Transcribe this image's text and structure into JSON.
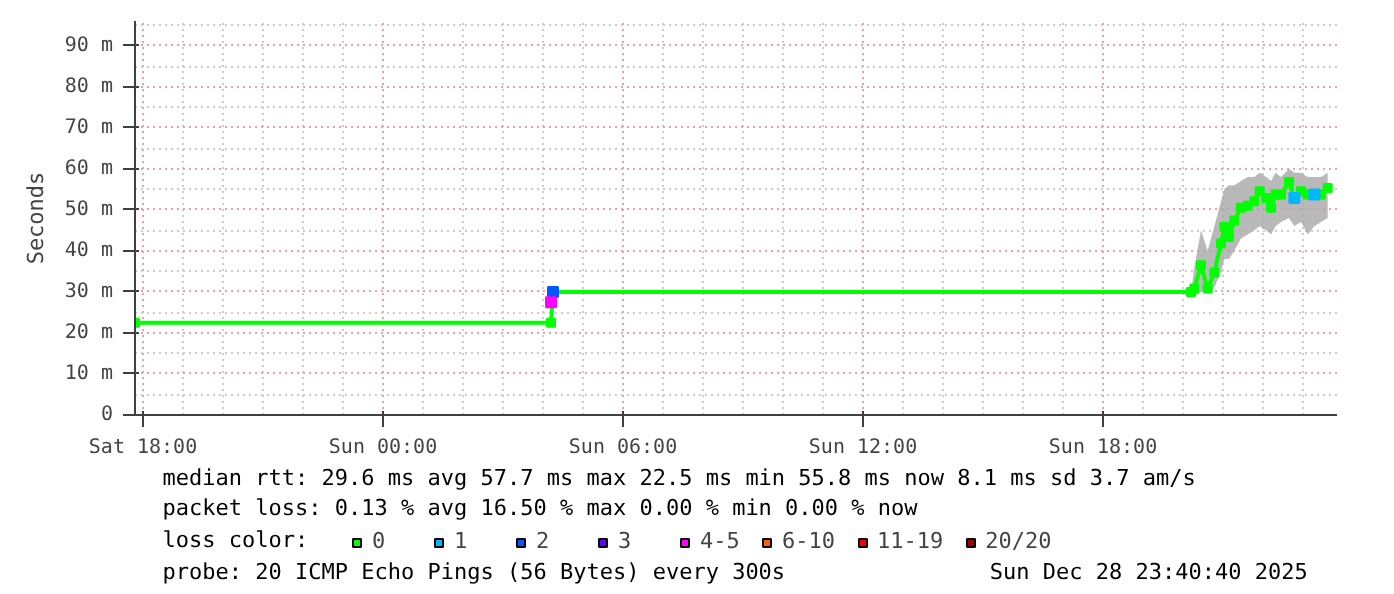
{
  "chart_data": {
    "type": "line",
    "ylabel": "Seconds",
    "x": [
      "2025-12-27T17:48",
      "2025-12-28T04:12",
      "2025-12-28T04:15",
      "2025-12-28T20:12",
      "2025-12-28T20:17",
      "2025-12-28T20:27",
      "2025-12-28T20:37",
      "2025-12-28T20:47",
      "2025-12-28T20:57",
      "2025-12-28T21:02",
      "2025-12-28T21:09",
      "2025-12-28T21:17",
      "2025-12-28T21:27",
      "2025-12-28T21:37",
      "2025-12-28T21:47",
      "2025-12-28T21:55",
      "2025-12-28T22:05",
      "2025-12-28T22:12",
      "2025-12-28T22:19",
      "2025-12-28T22:27",
      "2025-12-28T22:39",
      "2025-12-28T22:47",
      "2025-12-28T22:57",
      "2025-12-28T23:07",
      "2025-12-28T23:17",
      "2025-12-28T23:27",
      "2025-12-28T23:37"
    ],
    "series": [
      {
        "name": "0",
        "color": "#00ff00",
        "values": [
          22.5,
          22.5,
          30,
          30,
          30.8,
          36.5,
          30.8,
          34.7,
          41.8,
          45.8,
          43.4,
          47.4,
          50.5,
          51,
          52.1,
          54.5,
          52.9,
          50.5,
          53.7,
          53.7,
          56.8,
          52.9,
          54.5,
          53.7,
          53.7,
          53.7,
          55.3
        ],
        "lower": [
          22.5,
          22.5,
          30,
          30,
          29,
          30,
          30,
          31,
          35,
          38,
          38,
          40,
          43,
          44,
          45,
          46,
          45,
          44,
          46,
          47,
          48,
          46,
          47,
          44,
          46,
          47,
          48
        ],
        "upper": [
          22.5,
          22.5,
          30,
          30,
          36,
          45,
          40,
          46,
          52,
          55,
          56,
          56,
          57,
          58,
          58,
          59,
          58,
          57,
          59,
          58,
          60,
          59,
          59,
          58,
          58,
          58,
          59
        ]
      },
      {
        "name": "1",
        "type": "scatter",
        "color": "#00b8ff",
        "values": [
          null,
          null,
          null,
          null,
          null,
          null,
          null,
          null,
          null,
          null,
          null,
          null,
          null,
          null,
          null,
          null,
          null,
          null,
          null,
          null,
          null,
          52.9,
          null,
          null,
          53.7,
          null,
          null
        ]
      },
      {
        "name": "2",
        "type": "scatter",
        "color": "#0059ff",
        "values": [
          null,
          null,
          30,
          null,
          null,
          null,
          null,
          null,
          null,
          null,
          null,
          null,
          null,
          null,
          null,
          null,
          null,
          null,
          null,
          null,
          null,
          null,
          null,
          null,
          null,
          null,
          null
        ]
      },
      {
        "name": "3",
        "type": "scatter",
        "color": "#5e00ff",
        "values": [
          null,
          null,
          null,
          null,
          null,
          null,
          null,
          null,
          null,
          null,
          null,
          null,
          null,
          null,
          null,
          null,
          null,
          null,
          null,
          null,
          null,
          null,
          null,
          null,
          null,
          null,
          null
        ]
      },
      {
        "name": "4-5",
        "type": "scatter",
        "color": "#ff00ff",
        "values": [
          null,
          27.5,
          null,
          null,
          null,
          null,
          null,
          null,
          null,
          null,
          null,
          null,
          null,
          null,
          null,
          null,
          null,
          null,
          null,
          null,
          null,
          null,
          null,
          null,
          null,
          null,
          null
        ]
      },
      {
        "name": "6-10",
        "type": "scatter",
        "color": "#ff5e00",
        "values": [
          null,
          null,
          null,
          null,
          null,
          null,
          null,
          null,
          null,
          null,
          null,
          null,
          null,
          null,
          null,
          null,
          null,
          null,
          null,
          null,
          null,
          null,
          null,
          null,
          null,
          null,
          null
        ]
      },
      {
        "name": "11-19",
        "type": "scatter",
        "color": "#ff0000",
        "values": [
          null,
          null,
          null,
          null,
          null,
          null,
          null,
          null,
          null,
          null,
          null,
          null,
          null,
          null,
          null,
          null,
          null,
          null,
          null,
          null,
          null,
          null,
          null,
          null,
          null,
          null,
          null
        ]
      },
      {
        "name": "20/20",
        "type": "scatter",
        "color": "#a10000",
        "values": [
          null,
          null,
          null,
          null,
          null,
          null,
          null,
          null,
          null,
          null,
          null,
          null,
          null,
          null,
          null,
          null,
          null,
          null,
          null,
          null,
          null,
          null,
          null,
          null,
          null,
          null,
          null
        ]
      }
    ],
    "xlim": [
      "2025-12-27T17:48",
      "2025-12-28T23:51"
    ],
    "xticks": [
      {
        "value": "2025-12-27T18:00",
        "label": "Sat 18:00"
      },
      {
        "value": "2025-12-28T00:00",
        "label": "Sun 00:00"
      },
      {
        "value": "2025-12-28T06:00",
        "label": "Sun 06:00"
      },
      {
        "value": "2025-12-28T12:00",
        "label": "Sun 12:00"
      },
      {
        "value": "2025-12-28T18:00",
        "label": "Sun 18:00"
      }
    ],
    "ylim": [
      0,
      96
    ],
    "yticks": [
      0,
      {
        "value": 10,
        "label": "10 m"
      },
      {
        "value": 20,
        "label": "20 m"
      },
      {
        "value": 30,
        "label": "30 m"
      },
      {
        "value": 40,
        "label": "40 m"
      },
      {
        "value": 50,
        "label": "50 m"
      },
      {
        "value": 60,
        "label": "60 m"
      },
      {
        "value": 70,
        "label": "70 m"
      },
      {
        "value": 80,
        "label": "80 m"
      },
      {
        "value": 90,
        "label": "90 m"
      }
    ],
    "legend": "bottom",
    "legend_title": "loss color:",
    "grid": true,
    "marker": "square",
    "annotations": [
      "median rtt:  29.6 ms avg  57.7 ms max  22.5 ms min  55.8 ms now  8.1 ms sd  3.7   am/s",
      "packet loss: 0.13 % avg  16.50 % max  0.00 % min  0.00 % now",
      "probe:       20 ICMP Echo Pings (56 Bytes) every 300s",
      "Sun Dec 28 23:40:40 2025"
    ]
  }
}
